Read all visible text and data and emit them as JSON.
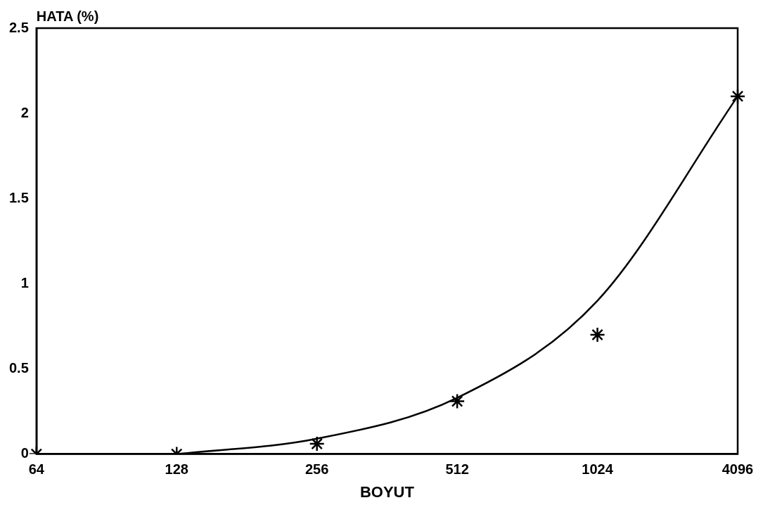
{
  "chart_data": {
    "type": "scatter",
    "xlabel": "BOYUT",
    "ylabel": "HATA (%)",
    "categories": [
      "64",
      "128",
      "256",
      "512",
      "1024",
      "4096"
    ],
    "series": [
      {
        "type": "scatter",
        "marker": "cross",
        "color": "#000000",
        "values": [
          0,
          0,
          0.06,
          0.31,
          0.7,
          2.1
        ]
      },
      {
        "type": "line",
        "marker": "none",
        "color": "#000000",
        "values": [
          null,
          0,
          0.09,
          0.33,
          0.9,
          2.1
        ]
      }
    ],
    "ylim": [
      0,
      2.5
    ],
    "yticks": [
      0,
      0.5,
      1,
      1.5,
      2,
      2.5
    ],
    "grid": false
  }
}
